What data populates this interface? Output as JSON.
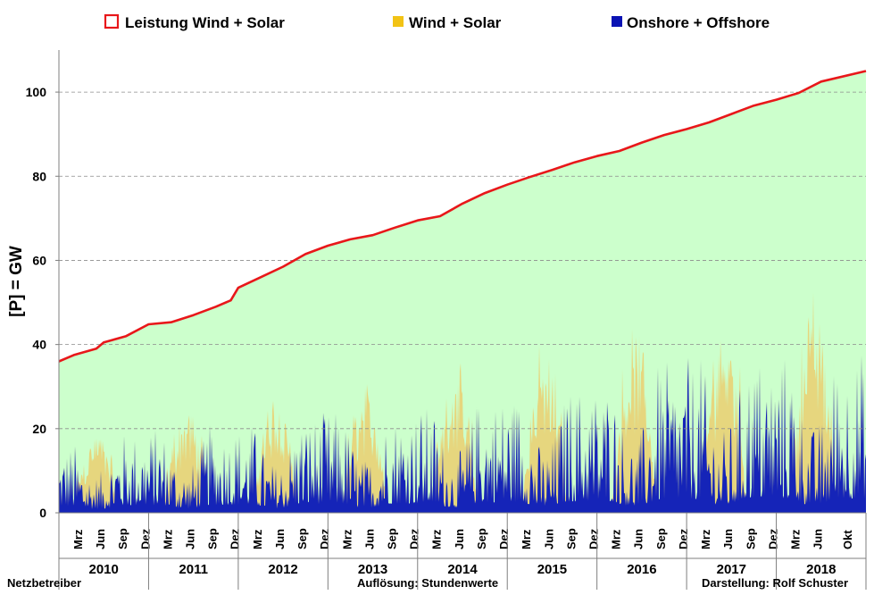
{
  "chart_data": {
    "type": "area",
    "title": "",
    "ylabel": "[P]  = GW",
    "ylim": [
      0,
      110
    ],
    "yticks": [
      0,
      20,
      40,
      60,
      80,
      100
    ],
    "grid": "horizontal-dashed",
    "legend_position": "top",
    "legend": [
      {
        "label": "Leistung Wind + Solar",
        "color": "#e8171a",
        "marker": "outline"
      },
      {
        "label": "Wind + Solar",
        "color": "#f2c315",
        "marker": "filled"
      },
      {
        "label": "Onshore + Offshore",
        "color": "#0a13b4",
        "marker": "filled"
      }
    ],
    "fill_colors": {
      "capacity_area": "#ccffcc",
      "wind_solar": "#e6d67e",
      "onshore_offshore": "#1524b8"
    },
    "x_years": [
      "2010",
      "2011",
      "2012",
      "2013",
      "2014",
      "2015",
      "2016",
      "2017",
      "2018"
    ],
    "x_month_ticks": [
      "Mrz",
      "Jun",
      "Sep",
      "Dez"
    ],
    "x_month_ticks_last_year": [
      "Mrz",
      "Jun",
      "Okt"
    ],
    "series": [
      {
        "name": "Leistung Wind + Solar",
        "type": "line",
        "x": [
          "2010-01",
          "2010-03",
          "2010-06",
          "2010-07",
          "2010-10",
          "2011-01",
          "2011-04",
          "2011-07",
          "2011-10",
          "2011-12",
          "2012-01",
          "2012-04",
          "2012-07",
          "2012-10",
          "2013-01",
          "2013-04",
          "2013-07",
          "2013-10",
          "2014-01",
          "2014-04",
          "2014-07",
          "2014-10",
          "2015-01",
          "2015-04",
          "2015-07",
          "2015-10",
          "2016-01",
          "2016-04",
          "2016-07",
          "2016-10",
          "2017-01",
          "2017-04",
          "2017-07",
          "2017-10",
          "2018-01",
          "2018-04",
          "2018-07",
          "2018-11"
        ],
        "values": [
          36,
          37.5,
          39,
          40.5,
          42,
          44.8,
          45.3,
          47,
          49,
          50.5,
          53.5,
          56,
          58.5,
          61.5,
          63.5,
          65,
          66,
          67.8,
          69.5,
          70.5,
          73.5,
          76,
          78,
          79.8,
          81.5,
          83.3,
          84.8,
          86,
          88,
          89.8,
          91.2,
          92.8,
          94.8,
          96.8,
          98.2,
          99.8,
          102.5,
          105
        ]
      },
      {
        "name": "Wind + Solar",
        "type": "area",
        "x": [
          "2010",
          "2011",
          "2012",
          "2013",
          "2014",
          "2015",
          "2016",
          "2017",
          "2018"
        ],
        "typical_peak_values": [
          14,
          20,
          24,
          26,
          27,
          33,
          35,
          40,
          45
        ]
      },
      {
        "name": "Onshore + Offshore",
        "type": "area",
        "x": [
          "2010",
          "2011",
          "2012",
          "2013",
          "2014",
          "2015",
          "2016",
          "2017",
          "2018"
        ],
        "typical_peak_values": [
          17,
          21,
          22,
          25,
          26,
          30,
          32,
          38,
          40
        ]
      }
    ]
  },
  "footer": {
    "left": "Netzbetreiber",
    "center": "Auflösung: Stundenwerte",
    "right": "Darstellung: Rolf Schuster"
  }
}
